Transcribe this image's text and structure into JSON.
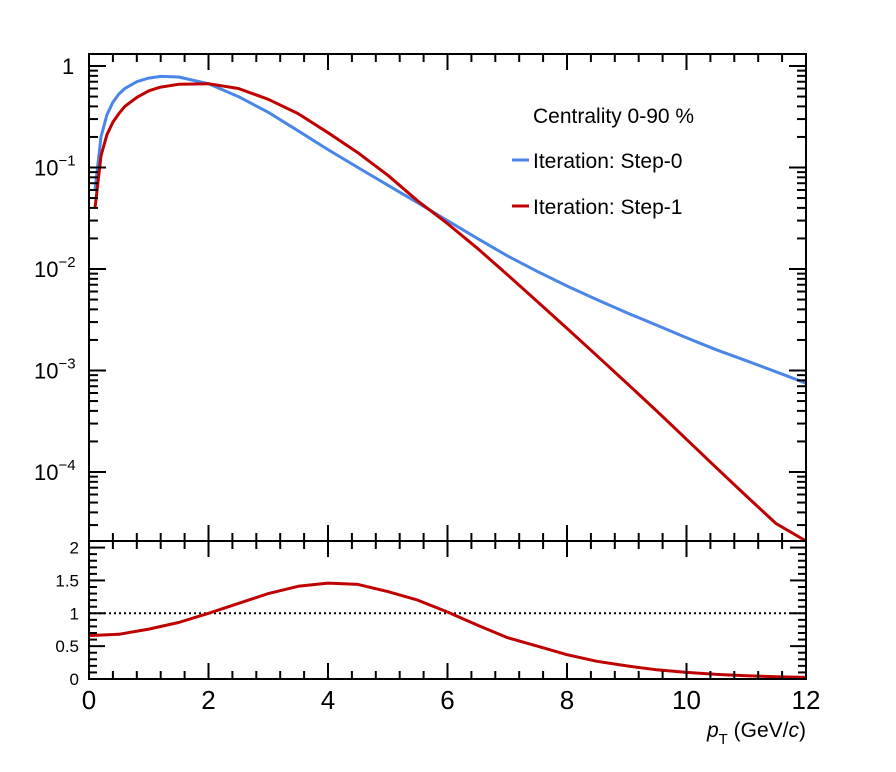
{
  "chart_data": [
    {
      "type": "line",
      "panel": "top",
      "yscale": "log",
      "xlim": [
        0,
        12
      ],
      "ylim": [
        2.5e-05,
        1.5
      ],
      "y_ticks": [
        {
          "value": 1,
          "base": "1",
          "exp": ""
        },
        {
          "value": 0.1,
          "base": "10",
          "exp": "−1"
        },
        {
          "value": 0.01,
          "base": "10",
          "exp": "−2"
        },
        {
          "value": 0.001,
          "base": "10",
          "exp": "−3"
        },
        {
          "value": 0.0001,
          "base": "10",
          "exp": "−4"
        }
      ],
      "legend": {
        "placement": "top-right",
        "header": "Centrality 0-90 %"
      },
      "series": [
        {
          "name": "Iteration: Step-0",
          "color": "#4a86e8",
          "x": [
            0.1,
            0.2,
            0.3,
            0.4,
            0.5,
            0.6,
            0.8,
            1.0,
            1.2,
            1.5,
            2.0,
            2.5,
            3.0,
            3.5,
            4.0,
            4.5,
            5.0,
            5.5,
            6.0,
            6.5,
            7.0,
            7.5,
            8.0,
            8.5,
            9.0,
            9.5,
            10.0,
            10.5,
            11.0,
            11.5,
            12.0
          ],
          "y": [
            0.06,
            0.2,
            0.33,
            0.44,
            0.53,
            0.6,
            0.7,
            0.76,
            0.79,
            0.78,
            0.67,
            0.5,
            0.35,
            0.23,
            0.15,
            0.1,
            0.067,
            0.045,
            0.03,
            0.02,
            0.0135,
            0.0095,
            0.0068,
            0.005,
            0.0037,
            0.0028,
            0.0021,
            0.0016,
            0.00125,
            0.00097,
            0.00075
          ]
        },
        {
          "name": "Iteration: Step-1",
          "color": "#c00000",
          "x": [
            0.1,
            0.2,
            0.3,
            0.4,
            0.5,
            0.6,
            0.8,
            1.0,
            1.2,
            1.5,
            2.0,
            2.5,
            3.0,
            3.5,
            4.0,
            4.5,
            5.0,
            5.5,
            6.0,
            6.5,
            7.0,
            7.5,
            8.0,
            8.5,
            9.0,
            9.5,
            10.0,
            10.5,
            11.0,
            11.5,
            12.0
          ],
          "y": [
            0.04,
            0.13,
            0.21,
            0.28,
            0.34,
            0.4,
            0.49,
            0.57,
            0.62,
            0.66,
            0.67,
            0.6,
            0.47,
            0.34,
            0.22,
            0.14,
            0.084,
            0.047,
            0.028,
            0.016,
            0.0088,
            0.0048,
            0.0026,
            0.0014,
            0.00075,
            0.0004,
            0.00021,
            0.00011,
            5.8e-05,
            3.1e-05,
            1.7e-05
          ]
        }
      ]
    },
    {
      "type": "line",
      "panel": "bottom",
      "xlim": [
        0,
        12
      ],
      "ylim": [
        0,
        2.1
      ],
      "x_tick_labels": [
        "0",
        "2",
        "4",
        "6",
        "8",
        "10",
        "12"
      ],
      "y_tick_labels": [
        "0",
        "0.5",
        "1",
        "1.5",
        "2"
      ],
      "xlabel": {
        "main": "p",
        "sub": "T",
        "unit_open": " (GeV/",
        "unit_c": "c",
        "unit_close": ")"
      },
      "reference_line": 1,
      "series": [
        {
          "color": "#c00000",
          "x": [
            0.0,
            0.5,
            1.0,
            1.5,
            2.0,
            2.5,
            3.0,
            3.5,
            4.0,
            4.5,
            5.0,
            5.5,
            6.0,
            6.5,
            7.0,
            7.5,
            8.0,
            8.5,
            9.0,
            9.5,
            10.0,
            10.5,
            11.0,
            11.5,
            12.0
          ],
          "y": [
            0.66,
            0.68,
            0.76,
            0.86,
            1.0,
            1.15,
            1.3,
            1.41,
            1.46,
            1.44,
            1.33,
            1.2,
            1.02,
            0.82,
            0.63,
            0.5,
            0.37,
            0.27,
            0.2,
            0.14,
            0.1,
            0.07,
            0.05,
            0.035,
            0.025
          ]
        }
      ]
    }
  ]
}
